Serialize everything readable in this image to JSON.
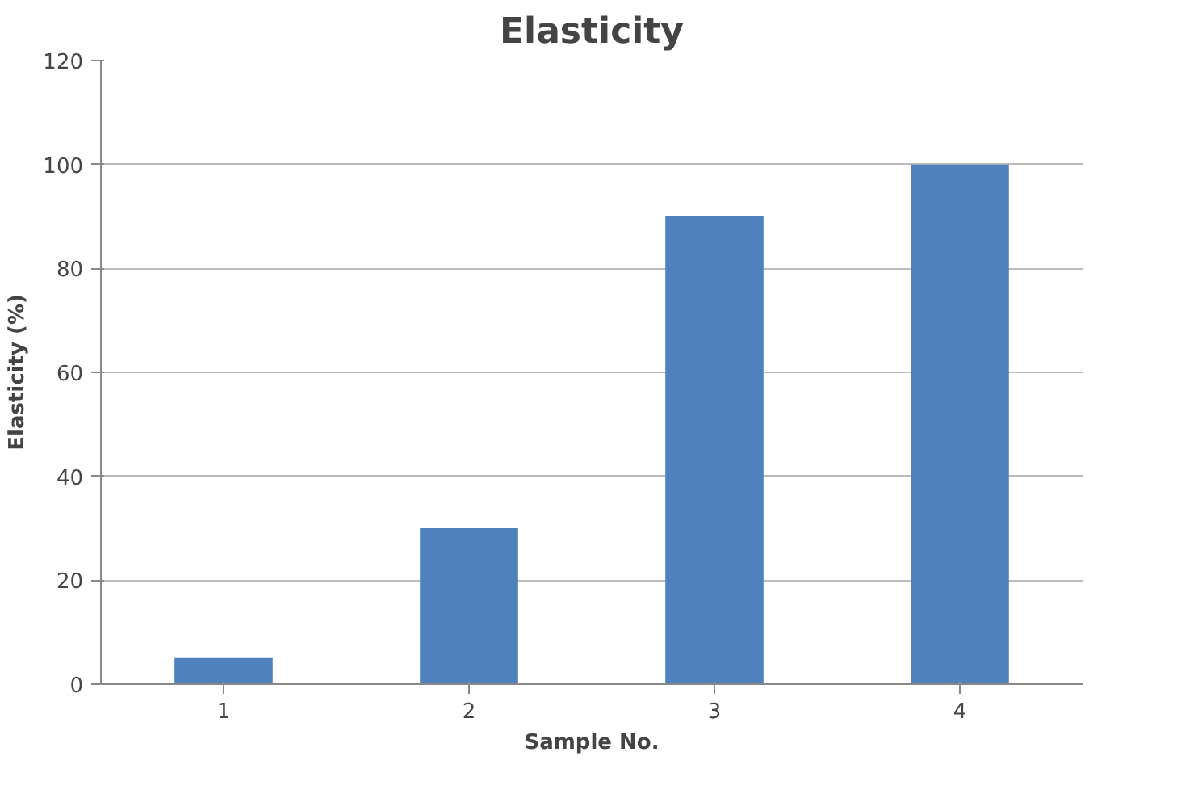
{
  "chart_data": {
    "type": "bar",
    "title": "Elasticity",
    "xlabel": "Sample No.",
    "ylabel": "Elasticity (%)",
    "categories": [
      "1",
      "2",
      "3",
      "4"
    ],
    "values": [
      5,
      30,
      90,
      100
    ],
    "color": "#4f81bd",
    "ylim": [
      0,
      120
    ],
    "yticks": [
      0,
      20,
      40,
      60,
      80,
      100,
      120
    ],
    "grid": "y"
  }
}
